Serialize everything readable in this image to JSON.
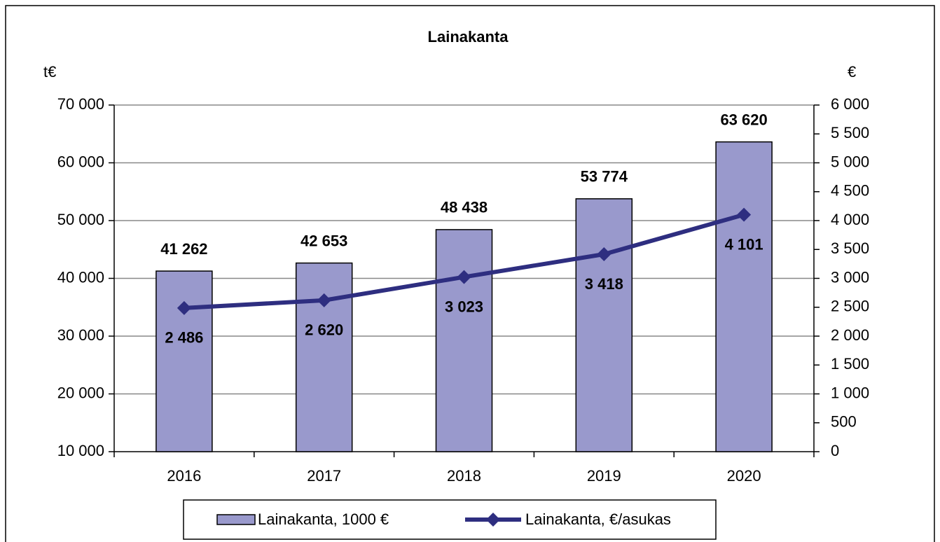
{
  "chart_data": {
    "type": "bar",
    "title": "Lainakanta",
    "y_label": "t€",
    "y2_label": "€",
    "categories": [
      "2016",
      "2017",
      "2018",
      "2019",
      "2020"
    ],
    "series": [
      {
        "name": "Lainakanta, 1000 €",
        "type": "bar",
        "color": "#9999cc",
        "values": [
          41262,
          42653,
          48438,
          53774,
          63620
        ],
        "value_labels": [
          "41 262",
          "42 653",
          "48 438",
          "53 774",
          "63 620"
        ]
      },
      {
        "name": "Lainakanta, €/asukas",
        "type": "line",
        "axis": "y2",
        "color": "#2e2e80",
        "values": [
          2486,
          2620,
          3023,
          3418,
          4101
        ],
        "value_labels": [
          "2 486",
          "2 620",
          "3 023",
          "3 418",
          "4 101"
        ]
      }
    ],
    "ylim": [
      10000,
      70000
    ],
    "yticks": [
      {
        "value": 10000,
        "label": "10 000"
      },
      {
        "value": 20000,
        "label": "20 000"
      },
      {
        "value": 30000,
        "label": "30 000"
      },
      {
        "value": 40000,
        "label": "40 000"
      },
      {
        "value": 50000,
        "label": "50 000"
      },
      {
        "value": 60000,
        "label": "60 000"
      },
      {
        "value": 70000,
        "label": "70 000"
      }
    ],
    "y2lim": [
      0,
      6000
    ],
    "y2ticks": [
      0,
      500,
      {
        "value": 1000,
        "label": "1 000"
      },
      {
        "value": 1500,
        "label": "1 500"
      },
      {
        "value": 2000,
        "label": "2 000"
      },
      {
        "value": 2500,
        "label": "2 500"
      },
      {
        "value": 3000,
        "label": "3 000"
      },
      {
        "value": 3500,
        "label": "3 500"
      },
      {
        "value": 4000,
        "label": "4 000"
      },
      {
        "value": 4500,
        "label": "4 500"
      },
      {
        "value": 5000,
        "label": "5 000"
      },
      {
        "value": 5500,
        "label": "5 500"
      },
      {
        "value": 6000,
        "label": "6 000"
      }
    ],
    "grid": true,
    "legend": "bottom"
  }
}
